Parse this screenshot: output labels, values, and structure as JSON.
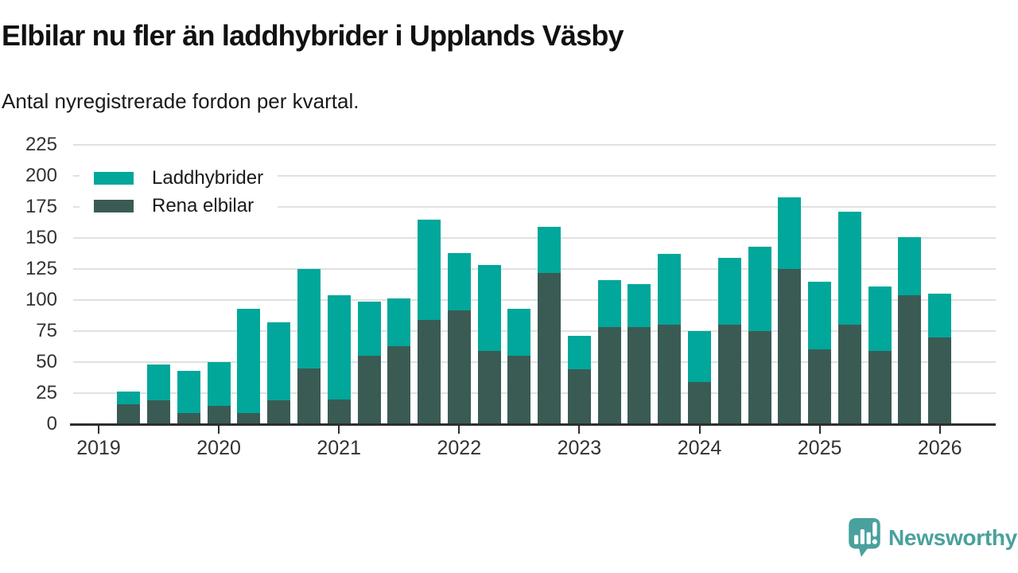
{
  "header": {
    "title": "Elbilar nu fler än laddhybrider i Upplands Väsby",
    "subtitle": "Antal nyregistrerade fordon per kvartal."
  },
  "branding": {
    "logo_text": "Newsworthy",
    "logo_color": "#49a19d"
  },
  "colors": {
    "background": "#ffffff",
    "grid": "#e1e1e1",
    "axis": "#2e2e2e",
    "tick_text": "#333333",
    "title_text": "#111111"
  },
  "chart_data": {
    "type": "bar",
    "stacked": true,
    "title": "Elbilar nu fler än laddhybrider i Upplands Väsby",
    "subtitle": "Antal nyregistrerade fordon per kvartal.",
    "xlabel": "",
    "ylabel": "",
    "ylim": [
      0,
      225
    ],
    "y_ticks": [
      0,
      25,
      50,
      75,
      100,
      125,
      150,
      175,
      200,
      225
    ],
    "x_ticks": [
      "2019",
      "2020",
      "2021",
      "2022",
      "2023",
      "2024",
      "2025",
      "2026"
    ],
    "grid": "horizontal",
    "legend_position": "top-left",
    "categories": [
      "2019Q2",
      "2019Q3",
      "2019Q4",
      "2020Q1",
      "2020Q2",
      "2020Q3",
      "2020Q4",
      "2021Q1",
      "2021Q2",
      "2021Q3",
      "2021Q4",
      "2022Q1",
      "2022Q2",
      "2022Q3",
      "2022Q4",
      "2023Q1",
      "2023Q2",
      "2023Q3",
      "2023Q4",
      "2024Q1",
      "2024Q2",
      "2024Q3",
      "2024Q4",
      "2025Q1",
      "2025Q2",
      "2025Q3",
      "2025Q4",
      "2026Q1"
    ],
    "series": [
      {
        "name": "Laddhybrider",
        "color": "#00a79a",
        "values": [
          10,
          29,
          34,
          35,
          84,
          63,
          80,
          84,
          44,
          38,
          81,
          46,
          69,
          38,
          37,
          27,
          38,
          35,
          57,
          41,
          54,
          68,
          58,
          55,
          91,
          52,
          47,
          35
        ]
      },
      {
        "name": "Rena elbilar",
        "color": "#3a5b54",
        "values": [
          16,
          19,
          9,
          15,
          9,
          19,
          45,
          20,
          55,
          63,
          84,
          92,
          59,
          55,
          122,
          44,
          78,
          78,
          80,
          34,
          80,
          75,
          125,
          60,
          80,
          59,
          104,
          70
        ]
      }
    ],
    "stack_order_bottom_to_top": [
      "Rena elbilar",
      "Laddhybrider"
    ],
    "totals": [
      26,
      48,
      43,
      50,
      93,
      82,
      125,
      104,
      99,
      101,
      165,
      138,
      128,
      93,
      159,
      71,
      116,
      113,
      137,
      75,
      134,
      143,
      183,
      115,
      171,
      111,
      151,
      105
    ]
  }
}
